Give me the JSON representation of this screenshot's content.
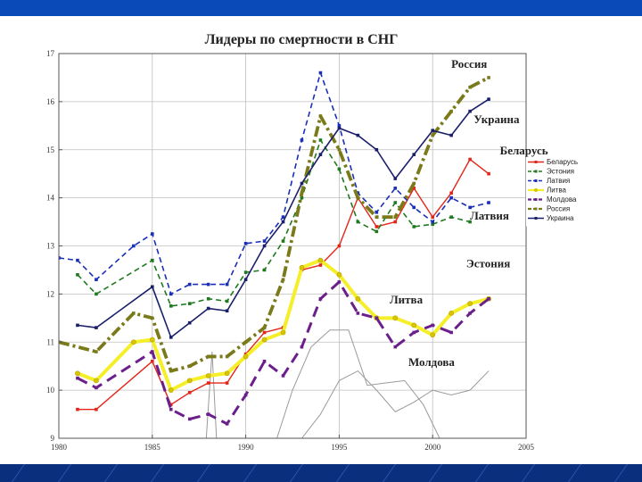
{
  "chart_data": {
    "type": "line",
    "title": "Лидеры по смертности в СНГ",
    "xlim": [
      1980,
      2005
    ],
    "ylim": [
      9,
      17
    ],
    "x_ticks": [
      1980,
      1985,
      1990,
      1995,
      2000,
      2005
    ],
    "y_ticks": [
      9,
      10,
      11,
      12,
      13,
      14,
      15,
      16,
      17
    ],
    "grid": true,
    "legend": "right",
    "series": [
      {
        "name": "Беларусь",
        "key": "belarus",
        "color": "#e32619",
        "dash": "",
        "width": 1.4,
        "marker": "square",
        "label": "Беларусь",
        "label_pos": {
          "x": 2003.6,
          "y": 14.9
        },
        "x": [
          1981,
          1982,
          1985,
          1986,
          1987,
          1988,
          1989,
          1990,
          1991,
          1992,
          1993,
          1994,
          1995,
          1996,
          1997,
          1998,
          1999,
          2000,
          2001,
          2002,
          2003
        ],
        "y": [
          9.6,
          9.6,
          10.6,
          9.7,
          9.95,
          10.15,
          10.15,
          10.75,
          11.2,
          11.3,
          12.5,
          12.6,
          13.0,
          14.0,
          13.4,
          13.5,
          14.2,
          13.6,
          14.1,
          14.8,
          14.5
        ]
      },
      {
        "name": "Эстония",
        "key": "estonia",
        "color": "#1f7a1f",
        "dash": "6,4",
        "width": 1.6,
        "marker": "square",
        "label": "Эстония",
        "label_pos": {
          "x": 2001.8,
          "y": 12.55
        },
        "x": [
          1981,
          1982,
          1985,
          1986,
          1987,
          1988,
          1989,
          1990,
          1991,
          1992,
          1993,
          1994,
          1995,
          1996,
          1997,
          1998,
          1999,
          2000,
          2001,
          2002
        ],
        "y": [
          12.4,
          12.0,
          12.7,
          11.75,
          11.8,
          11.9,
          11.85,
          12.45,
          12.5,
          13.1,
          14.0,
          15.2,
          14.6,
          13.5,
          13.3,
          13.9,
          13.4,
          13.45,
          13.6,
          13.5
        ]
      },
      {
        "name": "Латвия",
        "key": "latvia",
        "color": "#1a2fb8",
        "dash": "6,4",
        "width": 1.6,
        "marker": "square",
        "label": "Латвия",
        "label_pos": {
          "x": 2002.0,
          "y": 13.55
        },
        "x": [
          1980,
          1981,
          1982,
          1984,
          1985,
          1986,
          1987,
          1988,
          1989,
          1990,
          1991,
          1992,
          1993,
          1994,
          1995,
          1996,
          1997,
          1998,
          1999,
          2000,
          2001,
          2002,
          2003
        ],
        "y": [
          12.75,
          12.7,
          12.3,
          13.0,
          13.25,
          12.0,
          12.2,
          12.2,
          12.2,
          13.05,
          13.1,
          13.6,
          15.2,
          16.6,
          15.5,
          14.1,
          13.7,
          14.2,
          13.8,
          13.5,
          14.0,
          13.8,
          13.9
        ]
      },
      {
        "name": "Литва",
        "key": "lithuania",
        "color": "#f5ef2a",
        "dash": "",
        "width": 4,
        "marker": "circle",
        "label": "Литва",
        "label_pos": {
          "x": 1997.7,
          "y": 11.8
        },
        "x": [
          1981,
          1982,
          1984,
          1985,
          1986,
          1987,
          1988,
          1989,
          1990,
          1991,
          1992,
          1993,
          1994,
          1995,
          1996,
          1997,
          1998,
          1999,
          2000,
          2001,
          2002,
          2003
        ],
        "y": [
          10.35,
          10.2,
          11.0,
          11.05,
          10.0,
          10.2,
          10.3,
          10.35,
          10.7,
          11.05,
          11.2,
          12.55,
          12.7,
          12.4,
          11.9,
          11.5,
          11.5,
          11.35,
          11.15,
          11.6,
          11.8,
          11.9
        ]
      },
      {
        "name": "Молдова",
        "key": "moldova",
        "color": "#6b1f8a",
        "dash": "12,7",
        "width": 3,
        "marker": "square",
        "label": "Молдова",
        "label_pos": {
          "x": 1998.7,
          "y": 10.5
        },
        "x": [
          1981,
          1982,
          1985,
          1986,
          1987,
          1988,
          1989,
          1990,
          1991,
          1992,
          1993,
          1994,
          1995,
          1996,
          1997,
          1998,
          1999,
          2000,
          2001,
          2002,
          2003
        ],
        "y": [
          10.25,
          10.05,
          10.8,
          9.6,
          9.4,
          9.5,
          9.3,
          9.9,
          10.6,
          10.3,
          10.9,
          11.9,
          12.25,
          11.6,
          11.5,
          10.9,
          11.2,
          11.35,
          11.2,
          11.6,
          11.9
        ]
      },
      {
        "name": "Россия",
        "key": "russia",
        "color": "#7a7a1a",
        "dash": "12,4,3,4",
        "width": 3.8,
        "marker": "square",
        "label": "Россия",
        "label_pos": {
          "x": 2001.0,
          "y": 16.7
        },
        "x": [
          1980,
          1982,
          1984,
          1985,
          1986,
          1987,
          1988,
          1989,
          1990,
          1991,
          1992,
          1993,
          1994,
          1995,
          1996,
          1997,
          1998,
          1999,
          2000,
          2001,
          2002,
          2003
        ],
        "y": [
          11.0,
          10.8,
          11.6,
          11.5,
          10.4,
          10.5,
          10.7,
          10.7,
          11.0,
          11.3,
          12.3,
          14.1,
          15.7,
          15.0,
          14.0,
          13.6,
          13.6,
          14.3,
          15.3,
          15.8,
          16.3,
          16.5
        ]
      },
      {
        "name": "Украина",
        "key": "ukraine",
        "color": "#1a1f6b",
        "dash": "",
        "width": 1.6,
        "marker": "square",
        "label": "Украина",
        "label_pos": {
          "x": 2002.2,
          "y": 15.55
        },
        "x": [
          1981,
          1982,
          1985,
          1986,
          1987,
          1988,
          1989,
          1990,
          1991,
          1992,
          1993,
          1994,
          1995,
          1996,
          1997,
          1998,
          1999,
          2000,
          2001,
          2002,
          2003
        ],
        "y": [
          11.35,
          11.3,
          12.15,
          11.1,
          11.4,
          11.7,
          11.65,
          12.3,
          13.0,
          13.5,
          14.3,
          14.9,
          15.45,
          15.3,
          15.0,
          14.4,
          14.9,
          15.4,
          15.3,
          15.8,
          16.05
        ]
      }
    ],
    "noise_lines": [
      {
        "x": [
          1987.8,
          1988.2,
          1988.5
        ],
        "y": [
          8.5,
          10.8,
          8.5
        ]
      },
      {
        "x": [
          1991.5,
          1992.5,
          1993.5,
          1994.5,
          1995.5,
          1996.5,
          1997.5,
          1998.5,
          1999.5,
          2000.5
        ],
        "y": [
          8.8,
          10.0,
          10.9,
          11.25,
          11.25,
          10.1,
          10.15,
          10.2,
          9.7,
          8.9
        ]
      },
      {
        "x": [
          1993,
          1994,
          1995,
          1996,
          1997,
          1998,
          1999,
          2000,
          2001,
          2002,
          2003
        ],
        "y": [
          9.0,
          9.5,
          10.2,
          10.4,
          10.0,
          9.55,
          9.75,
          10.0,
          9.9,
          10.0,
          10.4
        ]
      }
    ]
  }
}
